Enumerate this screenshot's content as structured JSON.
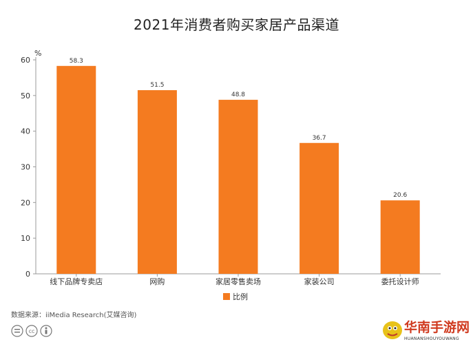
{
  "chart_data": {
    "type": "bar",
    "title": "2021年消费者购买家居产品渠道",
    "categories": [
      "线下品牌专卖店",
      "网购",
      "家居零售卖场",
      "家装公司",
      "委托设计师"
    ],
    "series": [
      {
        "name": "比例",
        "values": [
          58.3,
          51.5,
          48.8,
          36.7,
          20.6
        ],
        "color": "#F47B20"
      }
    ],
    "ylabel": "%",
    "xlabel": "",
    "ylim": [
      0,
      60
    ],
    "yticks": [
      0,
      10,
      20,
      30,
      40,
      50,
      60
    ],
    "grid": false,
    "legend": "bottom-center"
  },
  "source_text": "数据来源：iiMedia Research(艾媒咨询)",
  "watermark": {
    "text": "华南手游网",
    "subtext": "HUANANSHOUYOUWANG"
  },
  "colors": {
    "bar": "#F47B20",
    "axis": "#999999",
    "text": "#333333"
  }
}
